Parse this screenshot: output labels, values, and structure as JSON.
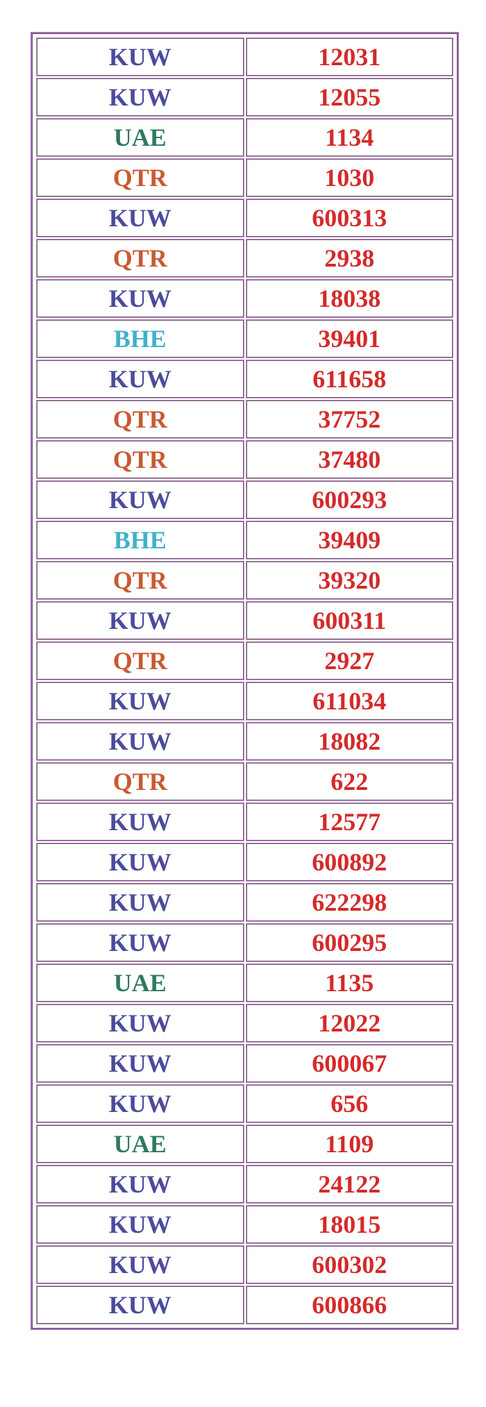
{
  "colors": {
    "KUW": "#4b4b9c",
    "UAE": "#2f7a5c",
    "QTR": "#c95a32",
    "BHE": "#3fb1c9",
    "number": "#d42a2a",
    "border": "#a868b8"
  },
  "rows": [
    {
      "code": "KUW",
      "number": "12031"
    },
    {
      "code": "KUW",
      "number": "12055"
    },
    {
      "code": "UAE",
      "number": "1134"
    },
    {
      "code": "QTR",
      "number": "1030"
    },
    {
      "code": "KUW",
      "number": "600313"
    },
    {
      "code": "QTR",
      "number": "2938"
    },
    {
      "code": "KUW",
      "number": "18038"
    },
    {
      "code": "BHE",
      "number": "39401"
    },
    {
      "code": "KUW",
      "number": "611658"
    },
    {
      "code": "QTR",
      "number": "37752"
    },
    {
      "code": "QTR",
      "number": "37480"
    },
    {
      "code": "KUW",
      "number": "600293"
    },
    {
      "code": "BHE",
      "number": "39409"
    },
    {
      "code": "QTR",
      "number": "39320"
    },
    {
      "code": "KUW",
      "number": "600311"
    },
    {
      "code": "QTR",
      "number": "2927"
    },
    {
      "code": "KUW",
      "number": "611034"
    },
    {
      "code": "KUW",
      "number": "18082"
    },
    {
      "code": "QTR",
      "number": "622"
    },
    {
      "code": "KUW",
      "number": "12577"
    },
    {
      "code": "KUW",
      "number": "600892"
    },
    {
      "code": "KUW",
      "number": "622298"
    },
    {
      "code": "KUW",
      "number": "600295"
    },
    {
      "code": "UAE",
      "number": "1135"
    },
    {
      "code": "KUW",
      "number": "12022"
    },
    {
      "code": "KUW",
      "number": "600067"
    },
    {
      "code": "KUW",
      "number": "656"
    },
    {
      "code": "UAE",
      "number": "1109"
    },
    {
      "code": "KUW",
      "number": "24122"
    },
    {
      "code": "KUW",
      "number": "18015"
    },
    {
      "code": "KUW",
      "number": "600302"
    },
    {
      "code": "KUW",
      "number": "600866"
    }
  ]
}
